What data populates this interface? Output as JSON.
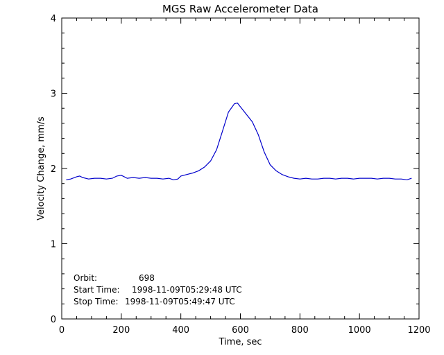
{
  "chart_data": {
    "type": "line",
    "title": "MGS Raw Accelerometer Data",
    "xlabel": "Time, sec",
    "ylabel": "Velocity Change, mm/s",
    "xlim": [
      0,
      1200
    ],
    "ylim": [
      0,
      4
    ],
    "x_ticks": [
      "0",
      "200",
      "400",
      "600",
      "800",
      "1000",
      "1200"
    ],
    "y_ticks": [
      "0",
      "1",
      "2",
      "3",
      "4"
    ],
    "grid": false,
    "line_color": "#0000cc",
    "series": [
      {
        "x": [
          15,
          30,
          50,
          60,
          70,
          90,
          110,
          130,
          150,
          170,
          185,
          200,
          220,
          240,
          260,
          280,
          300,
          320,
          340,
          360,
          375,
          390,
          400,
          420,
          440,
          460,
          480,
          500,
          520,
          540,
          560,
          580,
          590,
          600,
          620,
          640,
          660,
          680,
          700,
          720,
          740,
          760,
          780,
          800,
          820,
          840,
          860,
          880,
          900,
          920,
          940,
          960,
          980,
          1000,
          1020,
          1040,
          1060,
          1080,
          1100,
          1120,
          1140,
          1160,
          1175
        ],
        "values": [
          1.85,
          1.86,
          1.89,
          1.9,
          1.88,
          1.86,
          1.87,
          1.87,
          1.86,
          1.87,
          1.9,
          1.91,
          1.87,
          1.88,
          1.87,
          1.88,
          1.87,
          1.87,
          1.86,
          1.87,
          1.85,
          1.86,
          1.9,
          1.92,
          1.94,
          1.97,
          2.02,
          2.1,
          2.25,
          2.5,
          2.75,
          2.86,
          2.87,
          2.82,
          2.72,
          2.62,
          2.45,
          2.22,
          2.05,
          1.97,
          1.92,
          1.89,
          1.87,
          1.86,
          1.87,
          1.86,
          1.86,
          1.87,
          1.87,
          1.86,
          1.87,
          1.87,
          1.86,
          1.87,
          1.87,
          1.87,
          1.86,
          1.87,
          1.87,
          1.86,
          1.86,
          1.85,
          1.87
        ]
      }
    ],
    "annotations": {
      "orbit_label": "Orbit:",
      "orbit_value": "698",
      "start_label": "Start Time:",
      "start_value": "1998-11-09T05:29:48 UTC",
      "stop_label": "Stop Time:",
      "stop_value": "1998-11-09T05:49:47 UTC"
    }
  }
}
